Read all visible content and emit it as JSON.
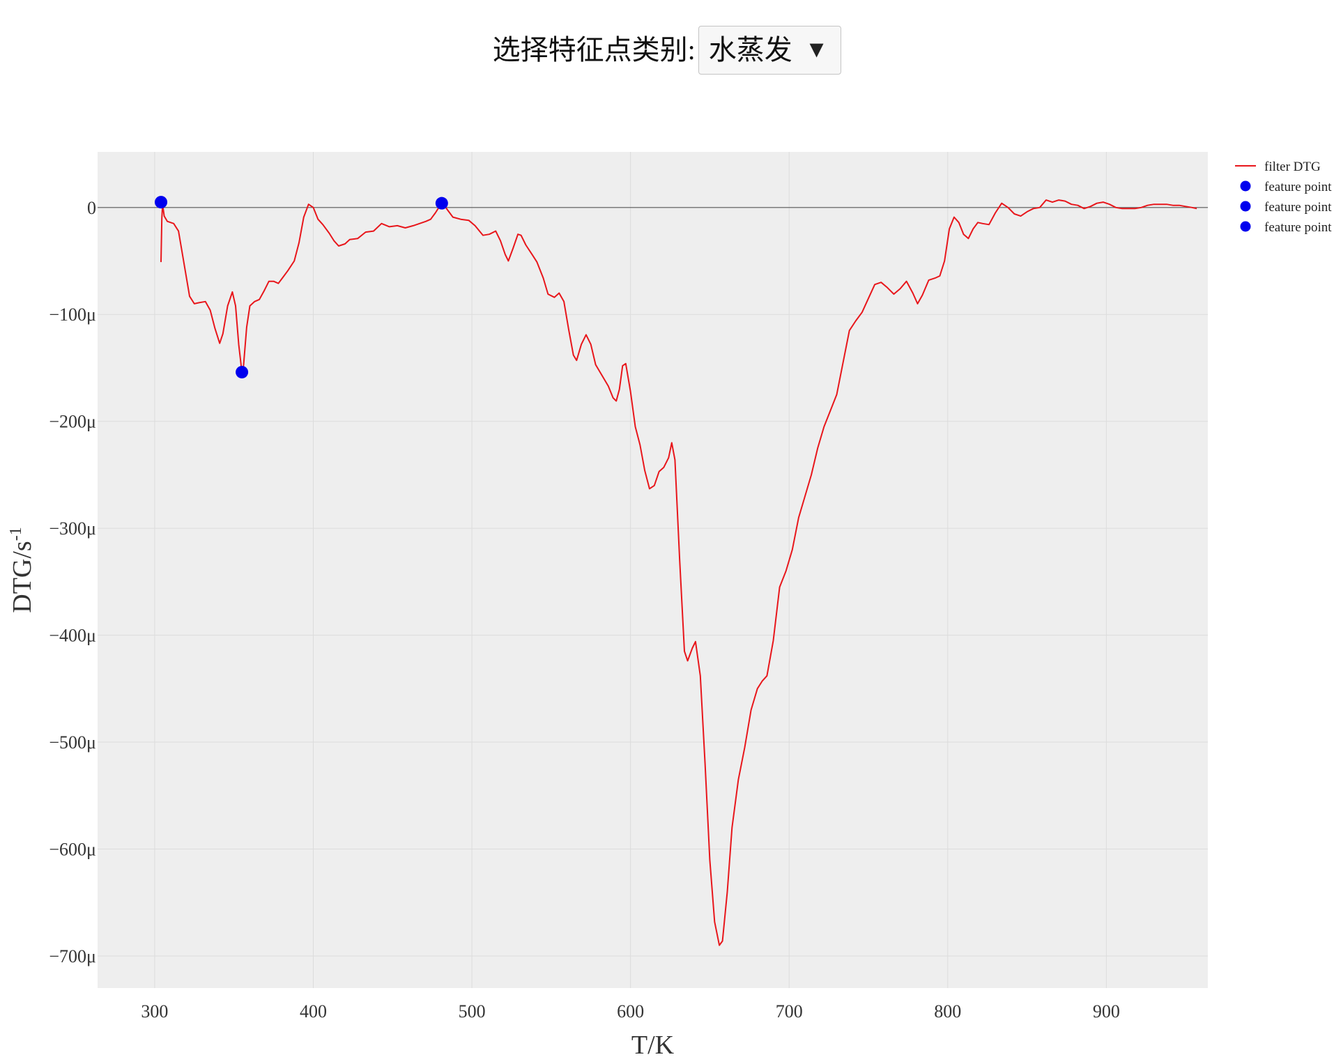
{
  "selector": {
    "label": "选择特征点类别:",
    "selected": "水蒸发",
    "arrow_icon": "triangle-down-icon"
  },
  "chart_data": {
    "type": "line",
    "xlabel": "T/K",
    "ylabel_base": "DTG/s",
    "ylabel_sup": "-1",
    "xlim": [
      264,
      964
    ],
    "ylim": [
      -730,
      52
    ],
    "x_ticks": [
      300,
      400,
      500,
      600,
      700,
      800,
      900
    ],
    "y_ticks": [
      0,
      -100,
      -200,
      -300,
      -400,
      -500,
      -600,
      -700
    ],
    "y_tick_labels": [
      "0",
      "−100μ",
      "−200μ",
      "−300μ",
      "−400μ",
      "−500μ",
      "−600μ",
      "−700μ"
    ],
    "y_unit": "μ (×1e-6 s^-1)",
    "grid": true,
    "zero_line": true,
    "legend_position": "right-top",
    "background": "#eeeeee",
    "series": [
      {
        "name": "filter DTG",
        "kind": "line",
        "color": "#e8161b",
        "points": [
          [
            304,
            -51
          ],
          [
            304.5,
            -10
          ],
          [
            305,
            3
          ],
          [
            306,
            -8
          ],
          [
            308,
            -13
          ],
          [
            312,
            -15
          ],
          [
            315,
            -22
          ],
          [
            318,
            -48
          ],
          [
            322,
            -83
          ],
          [
            325,
            -90
          ],
          [
            328,
            -89
          ],
          [
            332,
            -88
          ],
          [
            335,
            -96
          ],
          [
            338,
            -113
          ],
          [
            341,
            -127
          ],
          [
            343,
            -118
          ],
          [
            346,
            -92
          ],
          [
            349,
            -79
          ],
          [
            351,
            -92
          ],
          [
            353,
            -128
          ],
          [
            355,
            -154
          ],
          [
            356,
            -148
          ],
          [
            358,
            -112
          ],
          [
            360,
            -92
          ],
          [
            363,
            -88
          ],
          [
            366,
            -86
          ],
          [
            369,
            -78
          ],
          [
            372,
            -69
          ],
          [
            375,
            -69
          ],
          [
            378,
            -71
          ],
          [
            381,
            -65
          ],
          [
            384,
            -59
          ],
          [
            388,
            -50
          ],
          [
            391,
            -33
          ],
          [
            394,
            -9
          ],
          [
            397,
            3
          ],
          [
            400,
            0
          ],
          [
            403,
            -11
          ],
          [
            406,
            -16
          ],
          [
            410,
            -24
          ],
          [
            413,
            -31
          ],
          [
            416,
            -36
          ],
          [
            420,
            -34
          ],
          [
            423,
            -30
          ],
          [
            428,
            -29
          ],
          [
            433,
            -23
          ],
          [
            438,
            -22
          ],
          [
            443,
            -15
          ],
          [
            448,
            -18
          ],
          [
            453,
            -17
          ],
          [
            458,
            -19
          ],
          [
            463,
            -17
          ],
          [
            467,
            -15
          ],
          [
            471,
            -13
          ],
          [
            474,
            -11
          ],
          [
            477,
            -5
          ],
          [
            480,
            2
          ],
          [
            482,
            3
          ],
          [
            485,
            -3
          ],
          [
            488,
            -9
          ],
          [
            493,
            -11
          ],
          [
            498,
            -12
          ],
          [
            502,
            -17
          ],
          [
            507,
            -26
          ],
          [
            511,
            -25
          ],
          [
            515,
            -22
          ],
          [
            518,
            -31
          ],
          [
            521,
            -44
          ],
          [
            523,
            -50
          ],
          [
            526,
            -38
          ],
          [
            529,
            -25
          ],
          [
            531,
            -26
          ],
          [
            534,
            -35
          ],
          [
            538,
            -44
          ],
          [
            541,
            -51
          ],
          [
            545,
            -66
          ],
          [
            548,
            -81
          ],
          [
            552,
            -84
          ],
          [
            555,
            -80
          ],
          [
            558,
            -88
          ],
          [
            561,
            -114
          ],
          [
            564,
            -138
          ],
          [
            566,
            -143
          ],
          [
            569,
            -128
          ],
          [
            572,
            -119
          ],
          [
            575,
            -128
          ],
          [
            578,
            -147
          ],
          [
            582,
            -157
          ],
          [
            586,
            -167
          ],
          [
            589,
            -178
          ],
          [
            591,
            -181
          ],
          [
            593,
            -170
          ],
          [
            595,
            -148
          ],
          [
            597,
            -146
          ],
          [
            600,
            -172
          ],
          [
            603,
            -205
          ],
          [
            606,
            -222
          ],
          [
            609,
            -246
          ],
          [
            612,
            -263
          ],
          [
            615,
            -260
          ],
          [
            618,
            -247
          ],
          [
            621,
            -243
          ],
          [
            624,
            -234
          ],
          [
            626,
            -220
          ],
          [
            628,
            -236
          ],
          [
            631,
            -330
          ],
          [
            634,
            -415
          ],
          [
            636,
            -424
          ],
          [
            639,
            -412
          ],
          [
            641,
            -406
          ],
          [
            644,
            -438
          ],
          [
            647,
            -520
          ],
          [
            650,
            -610
          ],
          [
            653,
            -668
          ],
          [
            656,
            -690
          ],
          [
            658,
            -686
          ],
          [
            661,
            -640
          ],
          [
            664,
            -580
          ],
          [
            668,
            -535
          ],
          [
            672,
            -505
          ],
          [
            676,
            -470
          ],
          [
            680,
            -450
          ],
          [
            683,
            -443
          ],
          [
            686,
            -438
          ],
          [
            690,
            -405
          ],
          [
            694,
            -355
          ],
          [
            698,
            -340
          ],
          [
            702,
            -320
          ],
          [
            706,
            -290
          ],
          [
            710,
            -270
          ],
          [
            714,
            -250
          ],
          [
            718,
            -225
          ],
          [
            722,
            -205
          ],
          [
            726,
            -190
          ],
          [
            730,
            -175
          ],
          [
            734,
            -145
          ],
          [
            738,
            -115
          ],
          [
            742,
            -106
          ],
          [
            746,
            -98
          ],
          [
            750,
            -85
          ],
          [
            754,
            -72
          ],
          [
            758,
            -70
          ],
          [
            762,
            -75
          ],
          [
            766,
            -81
          ],
          [
            770,
            -76
          ],
          [
            774,
            -69
          ],
          [
            778,
            -80
          ],
          [
            781,
            -90
          ],
          [
            784,
            -82
          ],
          [
            788,
            -68
          ],
          [
            792,
            -66
          ],
          [
            795,
            -64
          ],
          [
            798,
            -50
          ],
          [
            801,
            -20
          ],
          [
            804,
            -9
          ],
          [
            807,
            -14
          ],
          [
            810,
            -25
          ],
          [
            813,
            -29
          ],
          [
            816,
            -20
          ],
          [
            819,
            -14
          ],
          [
            822,
            -15
          ],
          [
            826,
            -16
          ],
          [
            830,
            -5
          ],
          [
            834,
            4
          ],
          [
            838,
            0
          ],
          [
            842,
            -6
          ],
          [
            846,
            -8
          ],
          [
            850,
            -4
          ],
          [
            854,
            -1
          ],
          [
            858,
            0
          ],
          [
            862,
            7
          ],
          [
            866,
            5
          ],
          [
            870,
            7
          ],
          [
            874,
            6
          ],
          [
            878,
            3
          ],
          [
            882,
            2
          ],
          [
            886,
            -1
          ],
          [
            890,
            1
          ],
          [
            894,
            4
          ],
          [
            898,
            5
          ],
          [
            902,
            3
          ],
          [
            906,
            0
          ],
          [
            910,
            -1
          ],
          [
            914,
            -1
          ],
          [
            918,
            -1
          ],
          [
            922,
            0
          ],
          [
            926,
            2
          ],
          [
            930,
            3
          ],
          [
            934,
            3
          ],
          [
            938,
            3
          ],
          [
            942,
            2
          ],
          [
            946,
            2
          ],
          [
            950,
            1
          ],
          [
            954,
            0
          ],
          [
            957,
            -1
          ]
        ]
      },
      {
        "name": "feature point",
        "kind": "marker",
        "color": "#0000ee",
        "points": [
          [
            304,
            5
          ]
        ]
      },
      {
        "name": "feature point",
        "kind": "marker",
        "color": "#0000ee",
        "points": [
          [
            355,
            -154
          ]
        ]
      },
      {
        "name": "feature point",
        "kind": "marker",
        "color": "#0000ee",
        "points": [
          [
            481,
            4
          ]
        ]
      }
    ]
  }
}
